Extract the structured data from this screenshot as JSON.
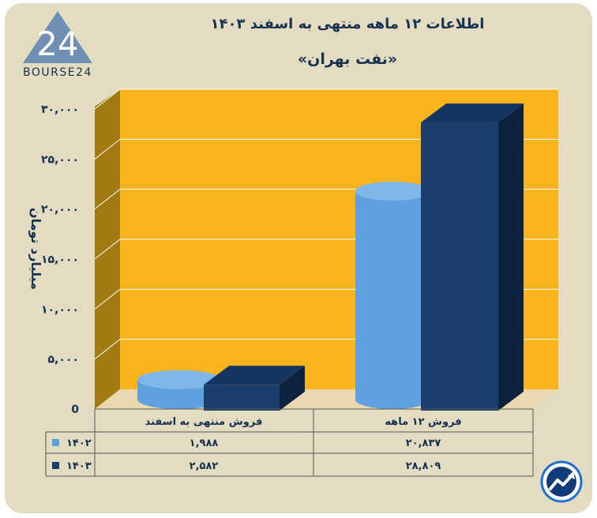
{
  "title": "اطلاعات ۱۲ ماهه منتهی به اسفند ۱۴۰۳",
  "subtitle": "«نفت بهران»",
  "logo_text": "BOURSE24",
  "colors": {
    "background": "#e4dcc2",
    "plot_back": "#f8b41c",
    "plot_side": "#a17a12",
    "plot_floor": "#ead9ae",
    "series_1402": "#5fa0de",
    "series_1403": "#1a3f6c",
    "text": "#17324f"
  },
  "chart_data": {
    "type": "bar",
    "ylabel": "میلیارد تومان",
    "ylim": [
      0,
      30000
    ],
    "yticks": [
      0,
      5000,
      10000,
      15000,
      20000,
      25000,
      30000
    ],
    "ytick_labels": [
      "0",
      "۵,۰۰۰",
      "۱۰,۰۰۰",
      "۱۵,۰۰۰",
      "۲۰,۰۰۰",
      "۲۵,۰۰۰",
      "۳۰,۰۰۰"
    ],
    "categories": [
      "فروش منتهی به اسفند",
      "فروش ۱۲ ماهه"
    ],
    "series": [
      {
        "name": "۱۴۰۲",
        "values": [
          1988,
          20837
        ],
        "labels": [
          "۱,۹۸۸",
          "۲۰,۸۳۷"
        ],
        "shape": "cylinder"
      },
      {
        "name": "۱۴۰۳",
        "values": [
          2582,
          28809
        ],
        "labels": [
          "۲,۵۸۲",
          "۲۸,۸۰۹"
        ],
        "shape": "box"
      }
    ],
    "grid": true,
    "legend": "data-table-left"
  }
}
